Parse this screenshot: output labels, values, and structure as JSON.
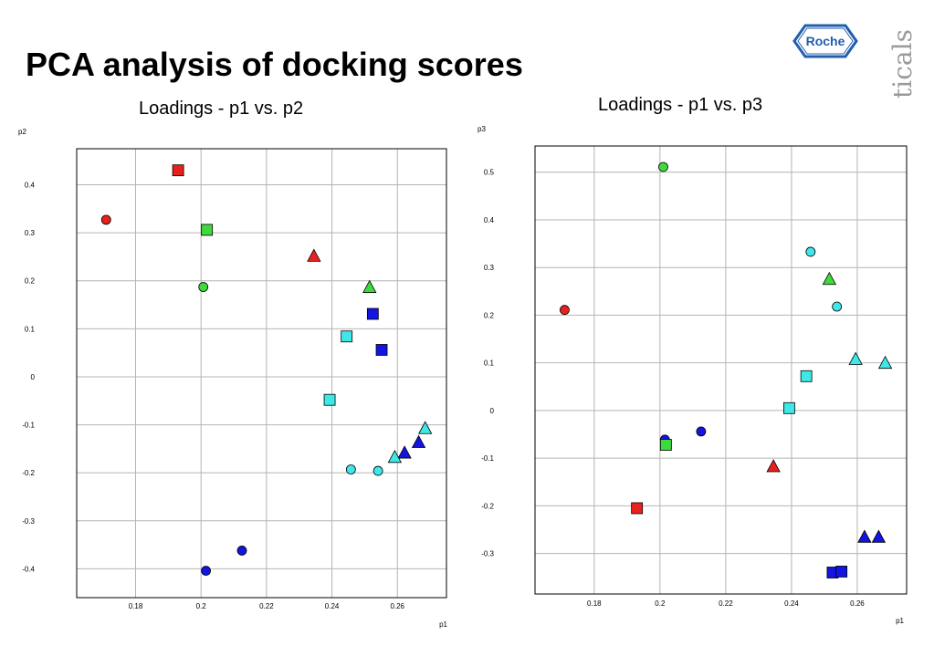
{
  "page": {
    "title": "PCA analysis of docking scores",
    "logo_text": "Roche",
    "side_text": "ticals"
  },
  "colors": {
    "red": "#e8211f",
    "green": "#3ed93e",
    "blue": "#1414e0",
    "cyan": "#3fe8e8",
    "grid": "#b4b4b4"
  },
  "chart_data": [
    {
      "type": "scatter",
      "title": "Loadings - p1 vs. p2",
      "xlabel": "p1",
      "ylabel": "p2",
      "xlim": [
        0.162,
        0.275
      ],
      "ylim": [
        -0.46,
        0.475
      ],
      "xticks": [
        0.18,
        0.2,
        0.22,
        0.24,
        0.26
      ],
      "xtick_labels": [
        "0.18",
        "0.2",
        "0.22",
        "0.24",
        "0.26"
      ],
      "yticks": [
        0.4,
        0.3,
        0.2,
        0.1,
        0,
        -0.1,
        -0.2,
        -0.3,
        -0.4
      ],
      "ytick_labels": [
        "0.4",
        "0.3",
        "0.2",
        "0.1",
        "0",
        "-0.1",
        "-0.2",
        "-0.3",
        "-0.4"
      ],
      "grid": true,
      "points": [
        {
          "x": 0.193,
          "y": 0.43,
          "shape": "square",
          "color": "red"
        },
        {
          "x": 0.171,
          "y": 0.327,
          "shape": "circle",
          "color": "red"
        },
        {
          "x": 0.2018,
          "y": 0.306,
          "shape": "square",
          "color": "green"
        },
        {
          "x": 0.2345,
          "y": 0.252,
          "shape": "triangle",
          "color": "red"
        },
        {
          "x": 0.2007,
          "y": 0.187,
          "shape": "circle",
          "color": "green"
        },
        {
          "x": 0.2515,
          "y": 0.187,
          "shape": "triangle",
          "color": "green"
        },
        {
          "x": 0.2525,
          "y": 0.131,
          "shape": "square",
          "color": "blue"
        },
        {
          "x": 0.2445,
          "y": 0.084,
          "shape": "square",
          "color": "cyan"
        },
        {
          "x": 0.2552,
          "y": 0.056,
          "shape": "square",
          "color": "blue"
        },
        {
          "x": 0.2393,
          "y": -0.048,
          "shape": "square",
          "color": "cyan"
        },
        {
          "x": 0.2685,
          "y": -0.107,
          "shape": "triangle",
          "color": "cyan"
        },
        {
          "x": 0.2665,
          "y": -0.136,
          "shape": "triangle",
          "color": "blue"
        },
        {
          "x": 0.2622,
          "y": -0.158,
          "shape": "triangle",
          "color": "blue"
        },
        {
          "x": 0.2592,
          "y": -0.167,
          "shape": "triangle",
          "color": "cyan"
        },
        {
          "x": 0.2458,
          "y": -0.193,
          "shape": "circle",
          "color": "cyan"
        },
        {
          "x": 0.2541,
          "y": -0.196,
          "shape": "circle",
          "color": "cyan"
        },
        {
          "x": 0.2125,
          "y": -0.362,
          "shape": "circle",
          "color": "blue"
        },
        {
          "x": 0.2015,
          "y": -0.404,
          "shape": "circle",
          "color": "blue"
        }
      ]
    },
    {
      "type": "scatter",
      "title": "Loadings - p1 vs. p3",
      "xlabel": "p1",
      "ylabel": "p3",
      "xlim": [
        0.162,
        0.275
      ],
      "ylim": [
        -0.385,
        0.555
      ],
      "xticks": [
        0.18,
        0.2,
        0.22,
        0.24,
        0.26
      ],
      "xtick_labels": [
        "0.18",
        "0.2",
        "0.22",
        "0.24",
        "0.26"
      ],
      "yticks": [
        0.5,
        0.4,
        0.3,
        0.2,
        0.1,
        0,
        -0.1,
        -0.2,
        -0.3
      ],
      "ytick_labels": [
        "0.5",
        "0.4",
        "0.3",
        "0.2",
        "0.1",
        "0",
        "-0.1",
        "-0.2",
        "-0.3"
      ],
      "grid": true,
      "points": [
        {
          "x": 0.201,
          "y": 0.511,
          "shape": "circle",
          "color": "green"
        },
        {
          "x": 0.2458,
          "y": 0.333,
          "shape": "circle",
          "color": "cyan"
        },
        {
          "x": 0.2515,
          "y": 0.276,
          "shape": "triangle",
          "color": "green"
        },
        {
          "x": 0.2538,
          "y": 0.218,
          "shape": "circle",
          "color": "cyan"
        },
        {
          "x": 0.171,
          "y": 0.211,
          "shape": "circle",
          "color": "red"
        },
        {
          "x": 0.2595,
          "y": 0.108,
          "shape": "triangle",
          "color": "cyan"
        },
        {
          "x": 0.2685,
          "y": 0.1,
          "shape": "triangle",
          "color": "cyan"
        },
        {
          "x": 0.2445,
          "y": 0.072,
          "shape": "square",
          "color": "cyan"
        },
        {
          "x": 0.2393,
          "y": 0.005,
          "shape": "square",
          "color": "cyan"
        },
        {
          "x": 0.2125,
          "y": -0.044,
          "shape": "circle",
          "color": "blue"
        },
        {
          "x": 0.2015,
          "y": -0.061,
          "shape": "circle",
          "color": "blue"
        },
        {
          "x": 0.2018,
          "y": -0.072,
          "shape": "square",
          "color": "green"
        },
        {
          "x": 0.2345,
          "y": -0.117,
          "shape": "triangle",
          "color": "red"
        },
        {
          "x": 0.193,
          "y": -0.205,
          "shape": "square",
          "color": "red"
        },
        {
          "x": 0.2622,
          "y": -0.265,
          "shape": "triangle",
          "color": "blue"
        },
        {
          "x": 0.2665,
          "y": -0.265,
          "shape": "triangle",
          "color": "blue"
        },
        {
          "x": 0.2525,
          "y": -0.34,
          "shape": "square",
          "color": "blue"
        },
        {
          "x": 0.2552,
          "y": -0.338,
          "shape": "square",
          "color": "blue"
        }
      ]
    }
  ]
}
